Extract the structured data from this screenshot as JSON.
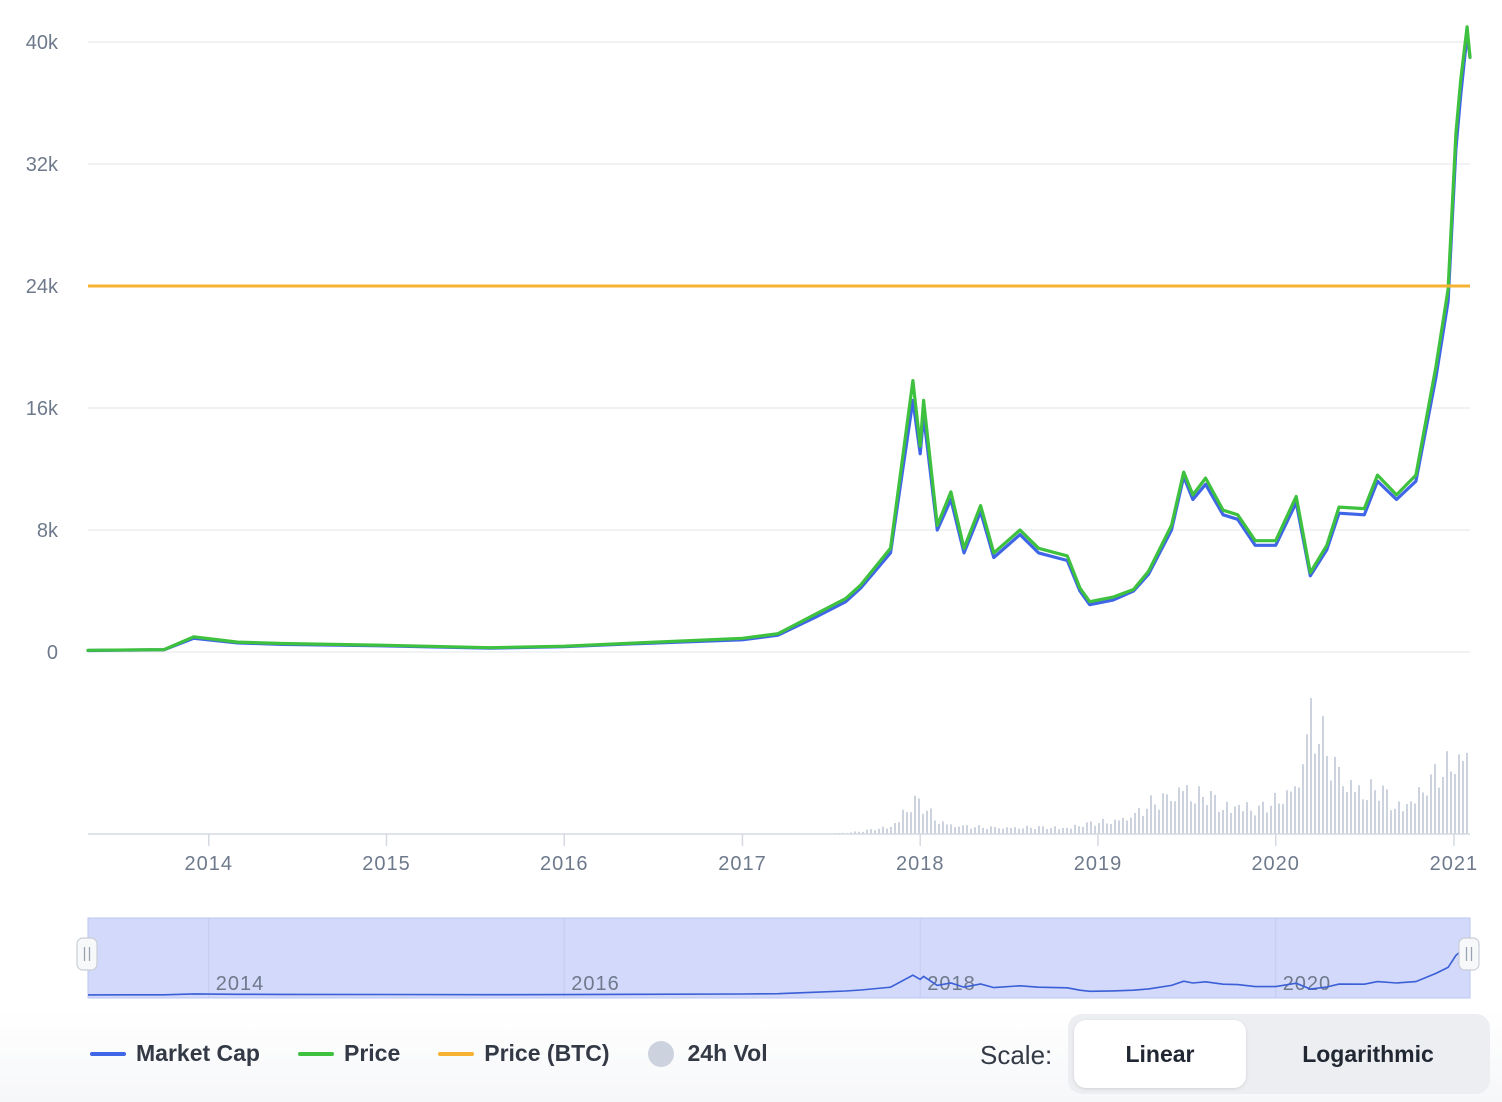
{
  "chart_data": {
    "type": "line",
    "title": "",
    "xlabel": "",
    "ylabel": "",
    "ylim": [
      0,
      40000
    ],
    "y_ticks": [
      "0",
      "8k",
      "16k",
      "24k",
      "32k",
      "40k"
    ],
    "x_ticks": [
      "2014",
      "2015",
      "2016",
      "2017",
      "2018",
      "2019",
      "2020",
      "2021"
    ],
    "navigator_ticks": [
      "2014",
      "2016",
      "2018",
      "2020"
    ],
    "grid": true,
    "legend_position": "bottom-left",
    "x_dates": [
      "2013-04-28",
      "2013-10-01",
      "2013-12-01",
      "2014-03-01",
      "2014-06-01",
      "2015-01-01",
      "2015-08-01",
      "2016-01-01",
      "2016-06-01",
      "2017-01-01",
      "2017-03-15",
      "2017-06-01",
      "2017-08-01",
      "2017-09-01",
      "2017-11-01",
      "2017-12-17",
      "2018-01-01",
      "2018-01-08",
      "2018-02-05",
      "2018-03-05",
      "2018-04-01",
      "2018-05-05",
      "2018-06-01",
      "2018-07-25",
      "2018-09-01",
      "2018-10-30",
      "2018-11-25",
      "2018-12-15",
      "2019-02-01",
      "2019-03-15",
      "2019-04-15",
      "2019-06-01",
      "2019-06-26",
      "2019-07-15",
      "2019-08-10",
      "2019-09-15",
      "2019-10-15",
      "2019-11-20",
      "2020-01-01",
      "2020-02-12",
      "2020-03-12",
      "2020-04-15",
      "2020-05-10",
      "2020-07-01",
      "2020-07-28",
      "2020-09-05",
      "2020-10-15",
      "2020-11-25",
      "2020-12-20",
      "2021-01-05",
      "2021-01-15",
      "2021-01-28",
      "2021-02-03"
    ],
    "series": [
      {
        "name": "Market Cap",
        "color": "#4066e8",
        "values": [
          100,
          150,
          900,
          600,
          500,
          400,
          250,
          350,
          550,
          800,
          1100,
          2300,
          3300,
          4200,
          6500,
          16500,
          13000,
          15500,
          8000,
          10000,
          6500,
          9200,
          6200,
          7700,
          6500,
          6000,
          4000,
          3100,
          3400,
          4000,
          5100,
          8000,
          11500,
          10000,
          11000,
          9000,
          8700,
          7000,
          7000,
          9800,
          5000,
          6700,
          9100,
          9000,
          11200,
          10000,
          11200,
          18000,
          23000,
          33000,
          36500,
          40500,
          39000
        ]
      },
      {
        "name": "Price",
        "color": "#3ec13e",
        "values": [
          110,
          160,
          1000,
          650,
          560,
          440,
          280,
          380,
          600,
          900,
          1200,
          2500,
          3500,
          4400,
          6800,
          17800,
          13500,
          16500,
          8300,
          10500,
          6800,
          9600,
          6500,
          8000,
          6800,
          6300,
          4200,
          3300,
          3600,
          4100,
          5300,
          8300,
          11800,
          10300,
          11400,
          9300,
          9000,
          7300,
          7300,
          10200,
          5200,
          7000,
          9500,
          9400,
          11600,
          10300,
          11600,
          18700,
          23800,
          34000,
          37500,
          41000,
          39000
        ]
      },
      {
        "name": "Price (BTC)",
        "color": "#f5b331",
        "values": [
          24000,
          24000
        ]
      }
    ],
    "volume": {
      "name": "24h Vol",
      "color": "#ccd3de",
      "levels": [
        0,
        0,
        0,
        0,
        0,
        0,
        0,
        0,
        0,
        0,
        0,
        0,
        0.01,
        0.02,
        0.06,
        0.25,
        0.22,
        0.2,
        0.1,
        0.07,
        0.06,
        0.05,
        0.05,
        0.05,
        0.05,
        0.05,
        0.07,
        0.08,
        0.1,
        0.15,
        0.22,
        0.3,
        0.38,
        0.28,
        0.3,
        0.2,
        0.24,
        0.18,
        0.25,
        0.38,
        0.9,
        0.6,
        0.45,
        0.32,
        0.35,
        0.2,
        0.3,
        0.45,
        0.5,
        0.6,
        0.55,
        0.65,
        1.0
      ]
    }
  },
  "legend": {
    "market_cap": "Market Cap",
    "price": "Price",
    "price_btc": "Price (BTC)",
    "vol": "24h Vol"
  },
  "scale": {
    "label": "Scale:",
    "linear": "Linear",
    "logarithmic": "Logarithmic",
    "selected": "Linear"
  },
  "colors": {
    "navigator_fill": "#d2d9fa",
    "grid": "#e6e9ee"
  }
}
